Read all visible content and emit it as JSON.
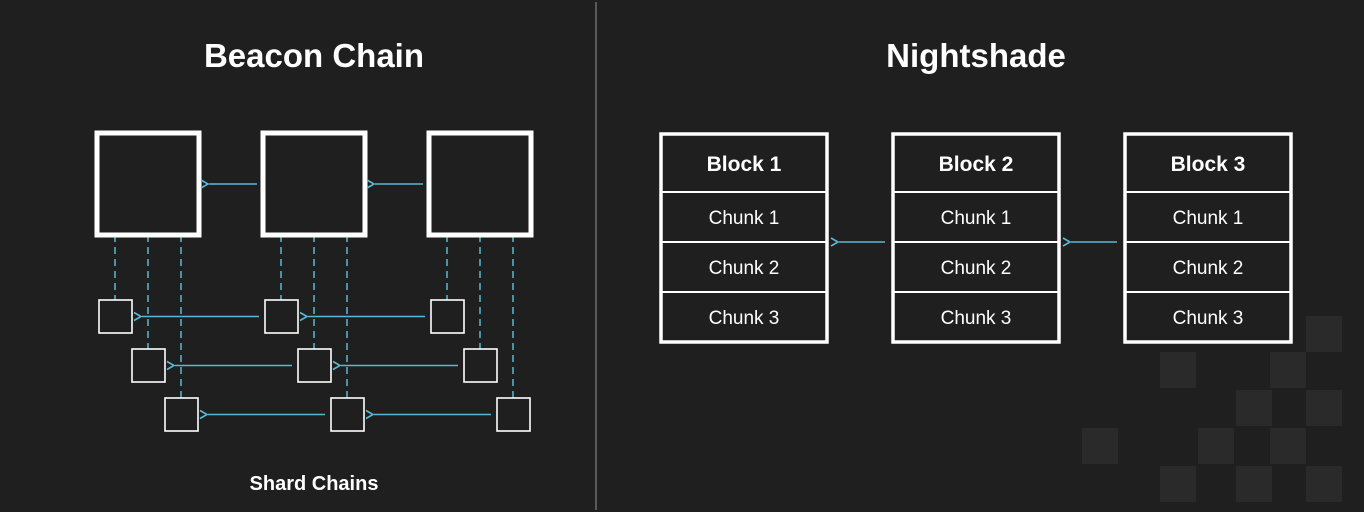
{
  "colors": {
    "background": "#1f1f1f",
    "foreground": "#ffffff",
    "divider": "#6b6b6b",
    "arrow": "#5ab8d6",
    "pattern": "#2a2a2a"
  },
  "beacon": {
    "title": "Beacon Chain",
    "shard_label": "Shard Chains",
    "beacon_block_count": 3,
    "shard_rows": 3
  },
  "nightshade": {
    "title": "Nightshade",
    "blocks": [
      {
        "label": "Block 1",
        "chunks": [
          "Chunk 1",
          "Chunk 2",
          "Chunk 3"
        ]
      },
      {
        "label": "Block 2",
        "chunks": [
          "Chunk 1",
          "Chunk 2",
          "Chunk 3"
        ]
      },
      {
        "label": "Block 3",
        "chunks": [
          "Chunk 1",
          "Chunk 2",
          "Chunk 3"
        ]
      }
    ]
  }
}
